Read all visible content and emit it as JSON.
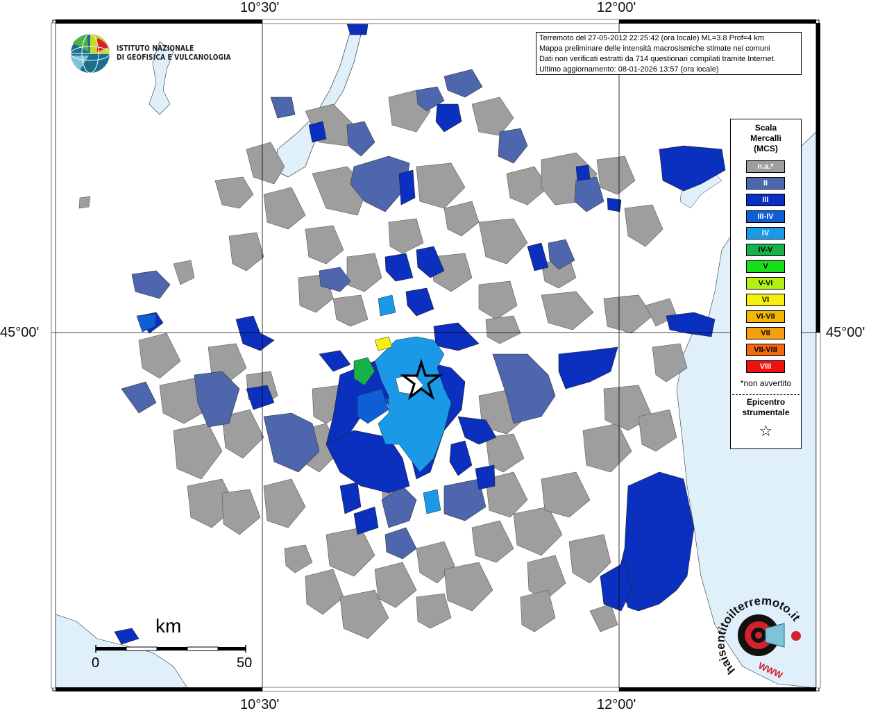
{
  "header": {
    "lines": [
      "Terremoto del 27-05-2012 22:25:42 (ora locale) ML=3.8 Prof=4 km",
      "Mappa preliminare delle intensità macrosismiche stimate nei comuni",
      "Dati non verificati estratti da 714 questionari compilati tramite Internet.",
      "Ultimo aggiornamento: 08-01-2026 13:57 (ora locale)"
    ]
  },
  "institute": {
    "line1": "ISTITUTO NAZIONALE",
    "line2": "DI GEOFISICA E VULCANOLOGIA"
  },
  "coordinates": {
    "lon_west": "10°30'",
    "lon_east": "12°00'",
    "lat": "45°00'"
  },
  "legend": {
    "title": [
      "Scala",
      "Mercalli",
      "(MCS)"
    ],
    "items": [
      {
        "label": "n.a.*",
        "color": "#9e9e9e",
        "text_color": "#ffffff"
      },
      {
        "label": "II",
        "color": "#4e66ad",
        "text_color": "#ffffff"
      },
      {
        "label": "III",
        "color": "#0b2fbf",
        "text_color": "#ffffff"
      },
      {
        "label": "III-IV",
        "color": "#0e5fd6",
        "text_color": "#ffffff"
      },
      {
        "label": "IV",
        "color": "#1a9ae6",
        "text_color": "#ffffff"
      },
      {
        "label": "IV-V",
        "color": "#17b04a",
        "text_color": "#000000"
      },
      {
        "label": "V",
        "color": "#18e018",
        "text_color": "#000000"
      },
      {
        "label": "V-VI",
        "color": "#b5f012",
        "text_color": "#000000"
      },
      {
        "label": "VI",
        "color": "#f5f010",
        "text_color": "#000000"
      },
      {
        "label": "VI-VII",
        "color": "#f5b800",
        "text_color": "#000000"
      },
      {
        "label": "VII",
        "color": "#f59e10",
        "text_color": "#000000"
      },
      {
        "label": "VII-VIII",
        "color": "#f06a10",
        "text_color": "#000000"
      },
      {
        "label": "VIII",
        "color": "#f01010",
        "text_color": "#ffffff"
      }
    ],
    "note": "*non avvertito",
    "epicenter_title": [
      "Epicentro",
      "strumentale"
    ],
    "epicenter_symbol": "☆"
  },
  "scale_bar": {
    "unit": "km",
    "min": "0",
    "max": "50"
  },
  "watermark": {
    "text": "haisentitoilterremoto.it",
    "url": "WWW"
  },
  "colors": {
    "water": "#dff0fa",
    "na": "#9e9e9e",
    "II": "#4e66ad",
    "III": "#0b2fbf",
    "IV": "#1a9ae6"
  }
}
